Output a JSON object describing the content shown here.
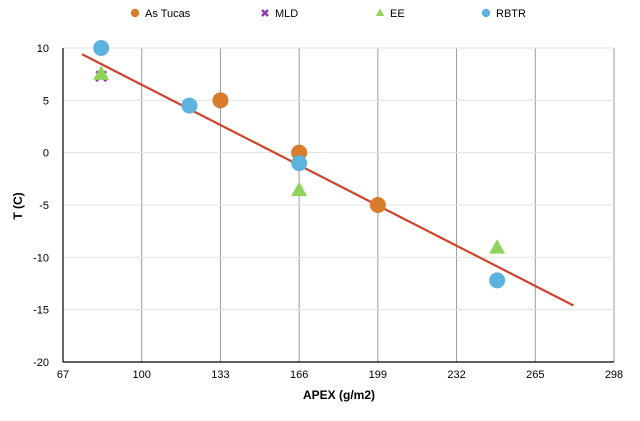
{
  "chart_data": {
    "type": "scatter",
    "title": "",
    "xlabel": "APEX (g/m2)",
    "ylabel": "T (C)",
    "xlim": [
      67,
      298
    ],
    "ylim": [
      -20,
      10
    ],
    "x_ticks": [
      67,
      100,
      133,
      166,
      199,
      232,
      265,
      298
    ],
    "y_ticks": [
      10,
      5,
      0,
      -5,
      -10,
      -15,
      -20
    ],
    "vertical_grid": true,
    "horizontal_grid": true,
    "legend_position": "top",
    "series": [
      {
        "name": "As Tucas",
        "marker": "circle",
        "color": "#d97c2b",
        "points": [
          [
            133,
            5
          ],
          [
            166,
            0
          ],
          [
            199,
            -5
          ]
        ]
      },
      {
        "name": "MLD",
        "marker": "x",
        "color": "#8e3bab",
        "points": [
          [
            83,
            7.3
          ],
          [
            166,
            -1
          ]
        ]
      },
      {
        "name": "EE",
        "marker": "triangle",
        "color": "#8fd35a",
        "points": [
          [
            83,
            7.5
          ],
          [
            166,
            -3.6
          ],
          [
            249,
            -9.1
          ]
        ]
      },
      {
        "name": "RBTR",
        "marker": "circle",
        "color": "#5cb3e0",
        "points": [
          [
            83,
            10
          ],
          [
            120,
            4.5
          ],
          [
            166,
            -1
          ],
          [
            249,
            -12.2
          ]
        ]
      }
    ],
    "trendline": {
      "color": "#d0442e",
      "x": [
        75,
        281
      ],
      "y": [
        9.4,
        -14.6
      ]
    }
  }
}
